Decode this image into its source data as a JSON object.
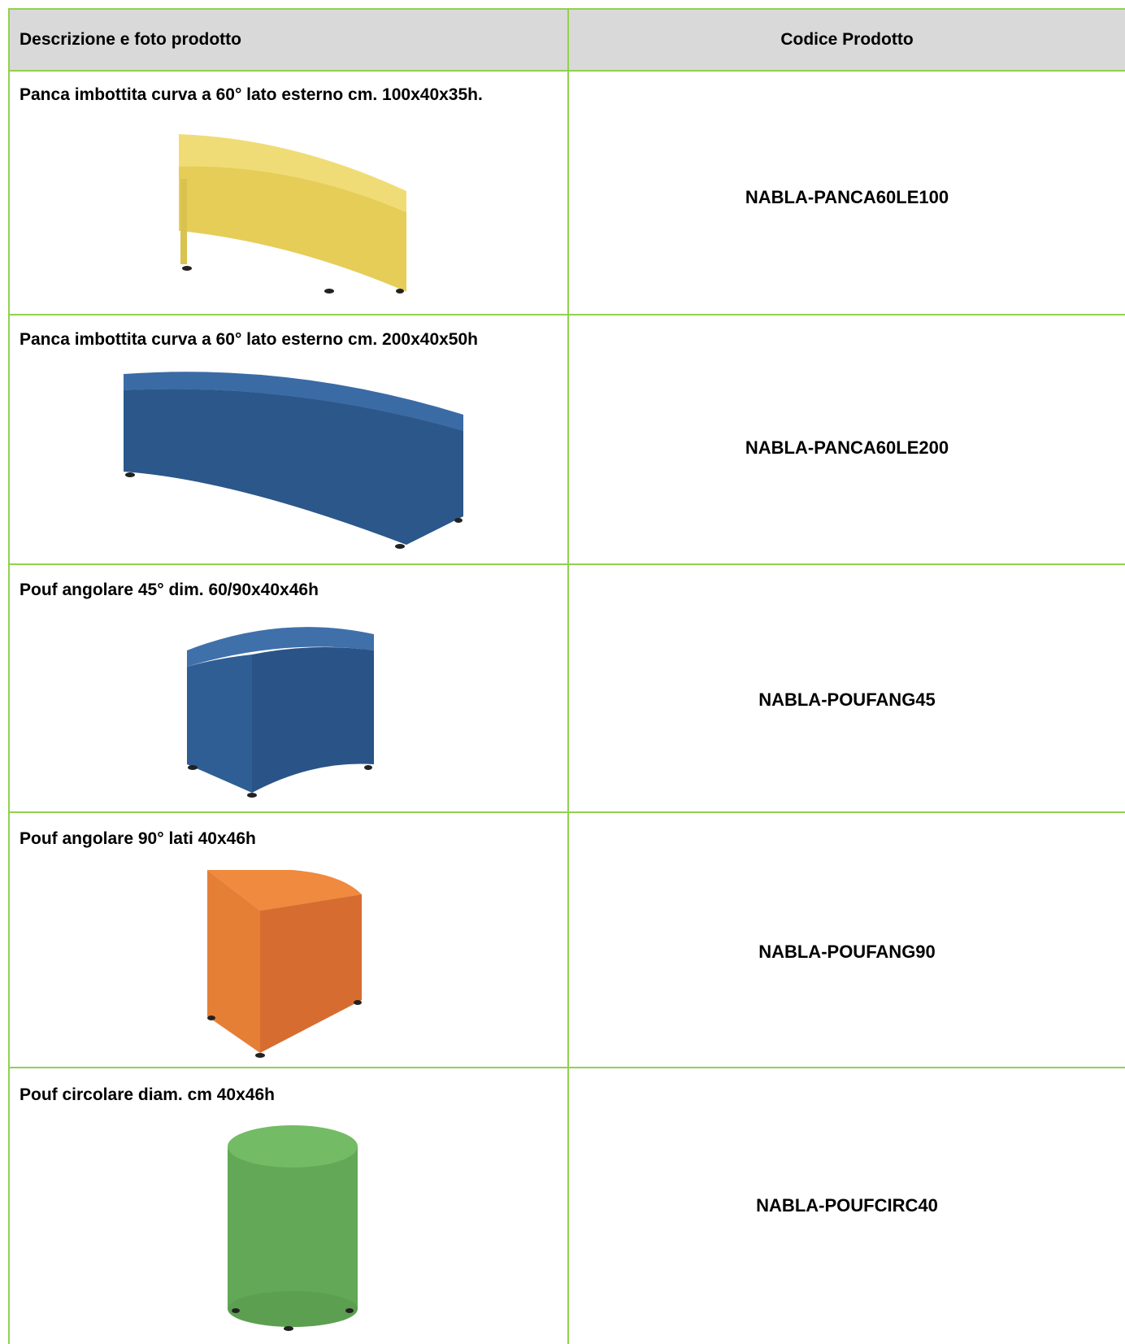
{
  "table": {
    "header": {
      "description": "Descrizione e foto prodotto",
      "code": "Codice Prodotto"
    },
    "rows": [
      {
        "description": "Panca imbottita curva a 60° lato esterno cm. 100x40x35h.",
        "code": "NABLA-PANCA60LE100",
        "color": "#e8d25a"
      },
      {
        "description": "Panca imbottita curva a 60° lato esterno cm. 200x40x50h",
        "code": "NABLA-PANCA60LE200",
        "color": "#2c5a8e"
      },
      {
        "description": "Pouf angolare 45° dim. 60/90x40x46h",
        "code": "NABLA-POUFANG45",
        "color": "#2c5a8e"
      },
      {
        "description": "Pouf angolare 90° lati 40x46h",
        "code": "NABLA-POUFANG90",
        "color": "#e07a34"
      },
      {
        "description": "Pouf circolare diam. cm 40x46h",
        "code": "NABLA-POUFCIRC40",
        "color": "#66ad5a"
      }
    ]
  },
  "colors": {
    "border": "#92d050",
    "header_bg": "#d9d9d9"
  }
}
